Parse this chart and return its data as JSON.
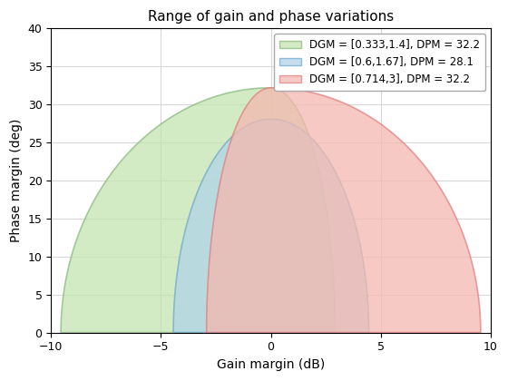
{
  "title": "Range of gain and phase variations",
  "xlabel": "Gain margin (dB)",
  "ylabel": "Phase margin (deg)",
  "xlim": [
    -10,
    10
  ],
  "ylim": [
    0,
    40
  ],
  "regions": [
    {
      "dgm_low": 0.333,
      "dgm_high": 1.4,
      "dpm": 32.2,
      "label": "DGM = [0.333,1.4], DPM = 32.2",
      "color": "#c5e5b0",
      "edge_color": "#8aba80",
      "alpha": 0.75
    },
    {
      "dgm_low": 0.6,
      "dgm_high": 1.67,
      "dpm": 28.1,
      "label": "DGM = [0.6,1.67], DPM = 28.1",
      "color": "#b0d4e8",
      "edge_color": "#70aacc",
      "alpha": 0.75
    },
    {
      "dgm_low": 0.714,
      "dgm_high": 3.0,
      "dpm": 32.2,
      "label": "DGM = [0.714,3], DPM = 32.2",
      "color": "#f5b8b0",
      "edge_color": "#e08080",
      "alpha": 0.75
    }
  ],
  "grid_color": "#d8d8d8",
  "background_color": "#ffffff",
  "xticks": [
    -10,
    -5,
    0,
    5,
    10
  ],
  "yticks": [
    0,
    5,
    10,
    15,
    20,
    25,
    30,
    35,
    40
  ]
}
